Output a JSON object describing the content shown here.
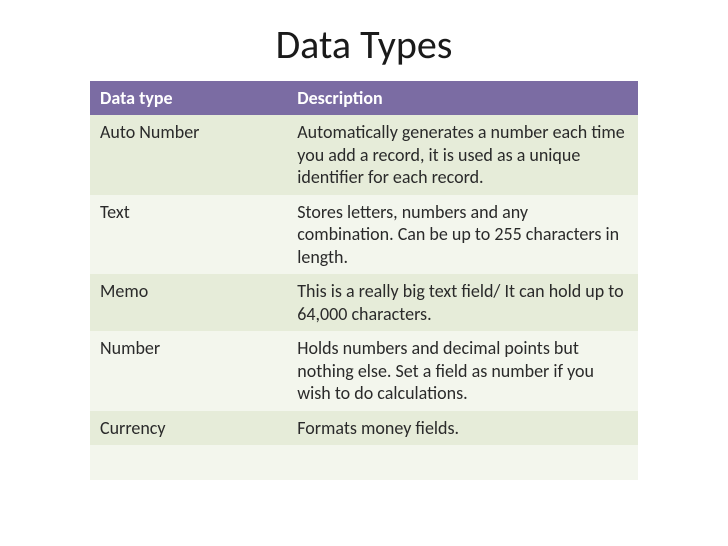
{
  "title": "Data Types",
  "table": {
    "type": "table",
    "header_bg": "#7b6ca3",
    "header_fg": "#ffffff",
    "row_colors": [
      "#e6ecd9",
      "#f3f6ed"
    ],
    "title_fontsize": 40,
    "cell_fontsize": 18,
    "text_color": "#2a2a2a",
    "columns": [
      {
        "label": "Data type",
        "width_pct": 36
      },
      {
        "label": "Description",
        "width_pct": 64
      }
    ],
    "rows": [
      [
        "Auto Number",
        "Automatically generates a number each time you add a record, it is used as a unique identifier for each record."
      ],
      [
        "Text",
        "Stores letters, numbers and any combination. Can be up to 255 characters in length."
      ],
      [
        "Memo",
        "This is a really big text field/ It can hold up to 64,000 characters."
      ],
      [
        "Number",
        "Holds numbers and decimal points but nothing else. Set a field as number if you wish to do calculations."
      ],
      [
        "Currency",
        "Formats money fields."
      ],
      [
        "",
        ""
      ]
    ]
  }
}
